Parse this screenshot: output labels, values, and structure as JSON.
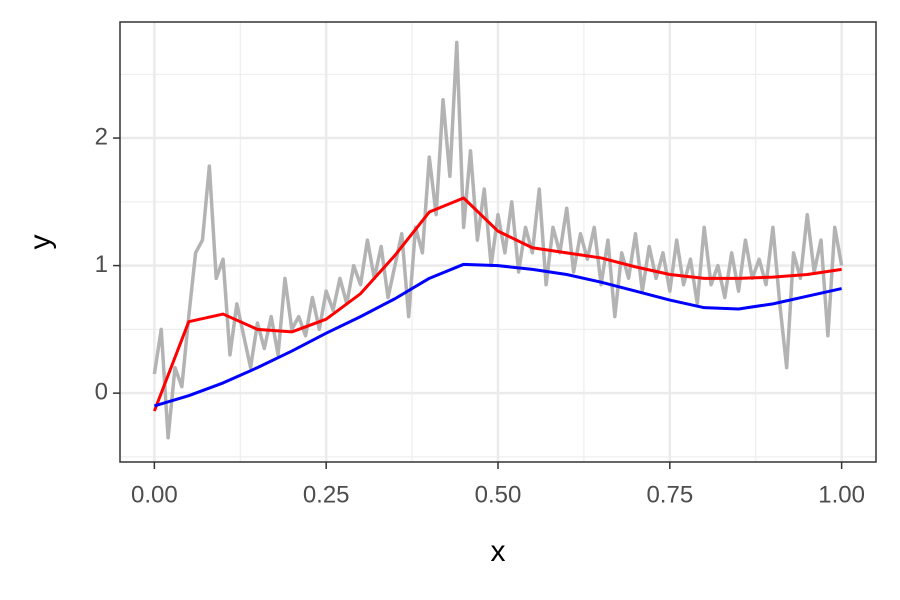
{
  "chart_data": {
    "type": "line",
    "xlabel": "x",
    "ylabel": "y",
    "xlim": [
      -0.05,
      1.05
    ],
    "ylim": [
      -0.54,
      2.91
    ],
    "xticks": [
      {
        "value": 0,
        "label": "0.00"
      },
      0.25,
      {
        "value": 0.5,
        "label": "0.50"
      },
      0.75,
      {
        "value": 1,
        "label": "1.00"
      }
    ],
    "yticks": [
      0,
      1,
      2
    ],
    "minor_xgrid": [
      0.125,
      0.375,
      0.625,
      0.875
    ],
    "minor_ygrid": [
      -0.5,
      0.5,
      1.5,
      2.5
    ],
    "grid": true,
    "series": [
      {
        "color": "#b3b3b3",
        "x": [
          0,
          0.01,
          0.02,
          0.03,
          0.04,
          0.05,
          0.06,
          0.07,
          0.08,
          0.09,
          0.1,
          0.11,
          0.12,
          0.13,
          0.14,
          0.15,
          0.16,
          0.17,
          0.18,
          0.19,
          0.2,
          0.21,
          0.22,
          0.23,
          0.24,
          0.25,
          0.26,
          0.27,
          0.28,
          0.29,
          0.3,
          0.31,
          0.32,
          0.33,
          0.34,
          0.35,
          0.36,
          0.37,
          0.38,
          0.39,
          0.4,
          0.41,
          0.42,
          0.43,
          0.44,
          0.45,
          0.46,
          0.47,
          0.48,
          0.49,
          0.5,
          0.51,
          0.52,
          0.53,
          0.54,
          0.55,
          0.56,
          0.57,
          0.58,
          0.59,
          0.6,
          0.61,
          0.62,
          0.63,
          0.64,
          0.65,
          0.66,
          0.67,
          0.68,
          0.69,
          0.7,
          0.71,
          0.72,
          0.73,
          0.74,
          0.75,
          0.76,
          0.77,
          0.78,
          0.79,
          0.8,
          0.81,
          0.82,
          0.83,
          0.84,
          0.85,
          0.86,
          0.87,
          0.88,
          0.89,
          0.9,
          0.91,
          0.92,
          0.93,
          0.94,
          0.95,
          0.96,
          0.97,
          0.98,
          0.99,
          1
        ],
        "values": [
          0.15,
          0.5,
          -0.35,
          0.2,
          0.05,
          0.6,
          1.1,
          1.2,
          1.78,
          0.9,
          1.05,
          0.3,
          0.7,
          0.45,
          0.2,
          0.55,
          0.35,
          0.6,
          0.3,
          0.9,
          0.5,
          0.6,
          0.45,
          0.75,
          0.5,
          0.8,
          0.65,
          0.9,
          0.7,
          1.0,
          0.85,
          1.2,
          0.9,
          1.15,
          0.75,
          1.0,
          1.25,
          0.6,
          1.3,
          1.1,
          1.85,
          1.4,
          2.3,
          1.7,
          2.75,
          1.3,
          1.9,
          1.2,
          1.6,
          1.0,
          1.4,
          1.1,
          1.5,
          0.95,
          1.3,
          1.1,
          1.6,
          0.85,
          1.3,
          1.1,
          1.45,
          0.95,
          1.25,
          1.05,
          1.3,
          0.85,
          1.2,
          0.6,
          1.1,
          0.9,
          1.25,
          0.8,
          1.15,
          0.9,
          1.1,
          0.8,
          1.2,
          0.85,
          1.05,
          0.7,
          1.3,
          0.85,
          1.0,
          0.75,
          1.1,
          0.8,
          1.2,
          0.9,
          1.05,
          0.85,
          1.3,
          0.7,
          0.2,
          1.1,
          0.9,
          1.4,
          0.95,
          1.2,
          0.45,
          1.3,
          1.0
        ]
      },
      {
        "color": "#ff0000",
        "x": [
          0,
          0.05,
          0.1,
          0.15,
          0.2,
          0.25,
          0.3,
          0.35,
          0.4,
          0.45,
          0.5,
          0.55,
          0.6,
          0.65,
          0.7,
          0.75,
          0.8,
          0.85,
          0.9,
          0.95,
          1
        ],
        "values": [
          -0.14,
          0.56,
          0.62,
          0.5,
          0.48,
          0.58,
          0.78,
          1.08,
          1.42,
          1.53,
          1.27,
          1.14,
          1.1,
          1.06,
          0.99,
          0.93,
          0.9,
          0.9,
          0.91,
          0.93,
          0.97
        ]
      },
      {
        "color": "#0000ff",
        "x": [
          0,
          0.05,
          0.1,
          0.15,
          0.2,
          0.25,
          0.3,
          0.35,
          0.4,
          0.45,
          0.5,
          0.55,
          0.6,
          0.65,
          0.7,
          0.75,
          0.8,
          0.85,
          0.9,
          0.95,
          1
        ],
        "values": [
          -0.1,
          -0.02,
          0.08,
          0.2,
          0.33,
          0.47,
          0.6,
          0.74,
          0.9,
          1.01,
          1.0,
          0.97,
          0.93,
          0.87,
          0.8,
          0.73,
          0.67,
          0.66,
          0.7,
          0.76,
          0.82
        ]
      }
    ]
  }
}
